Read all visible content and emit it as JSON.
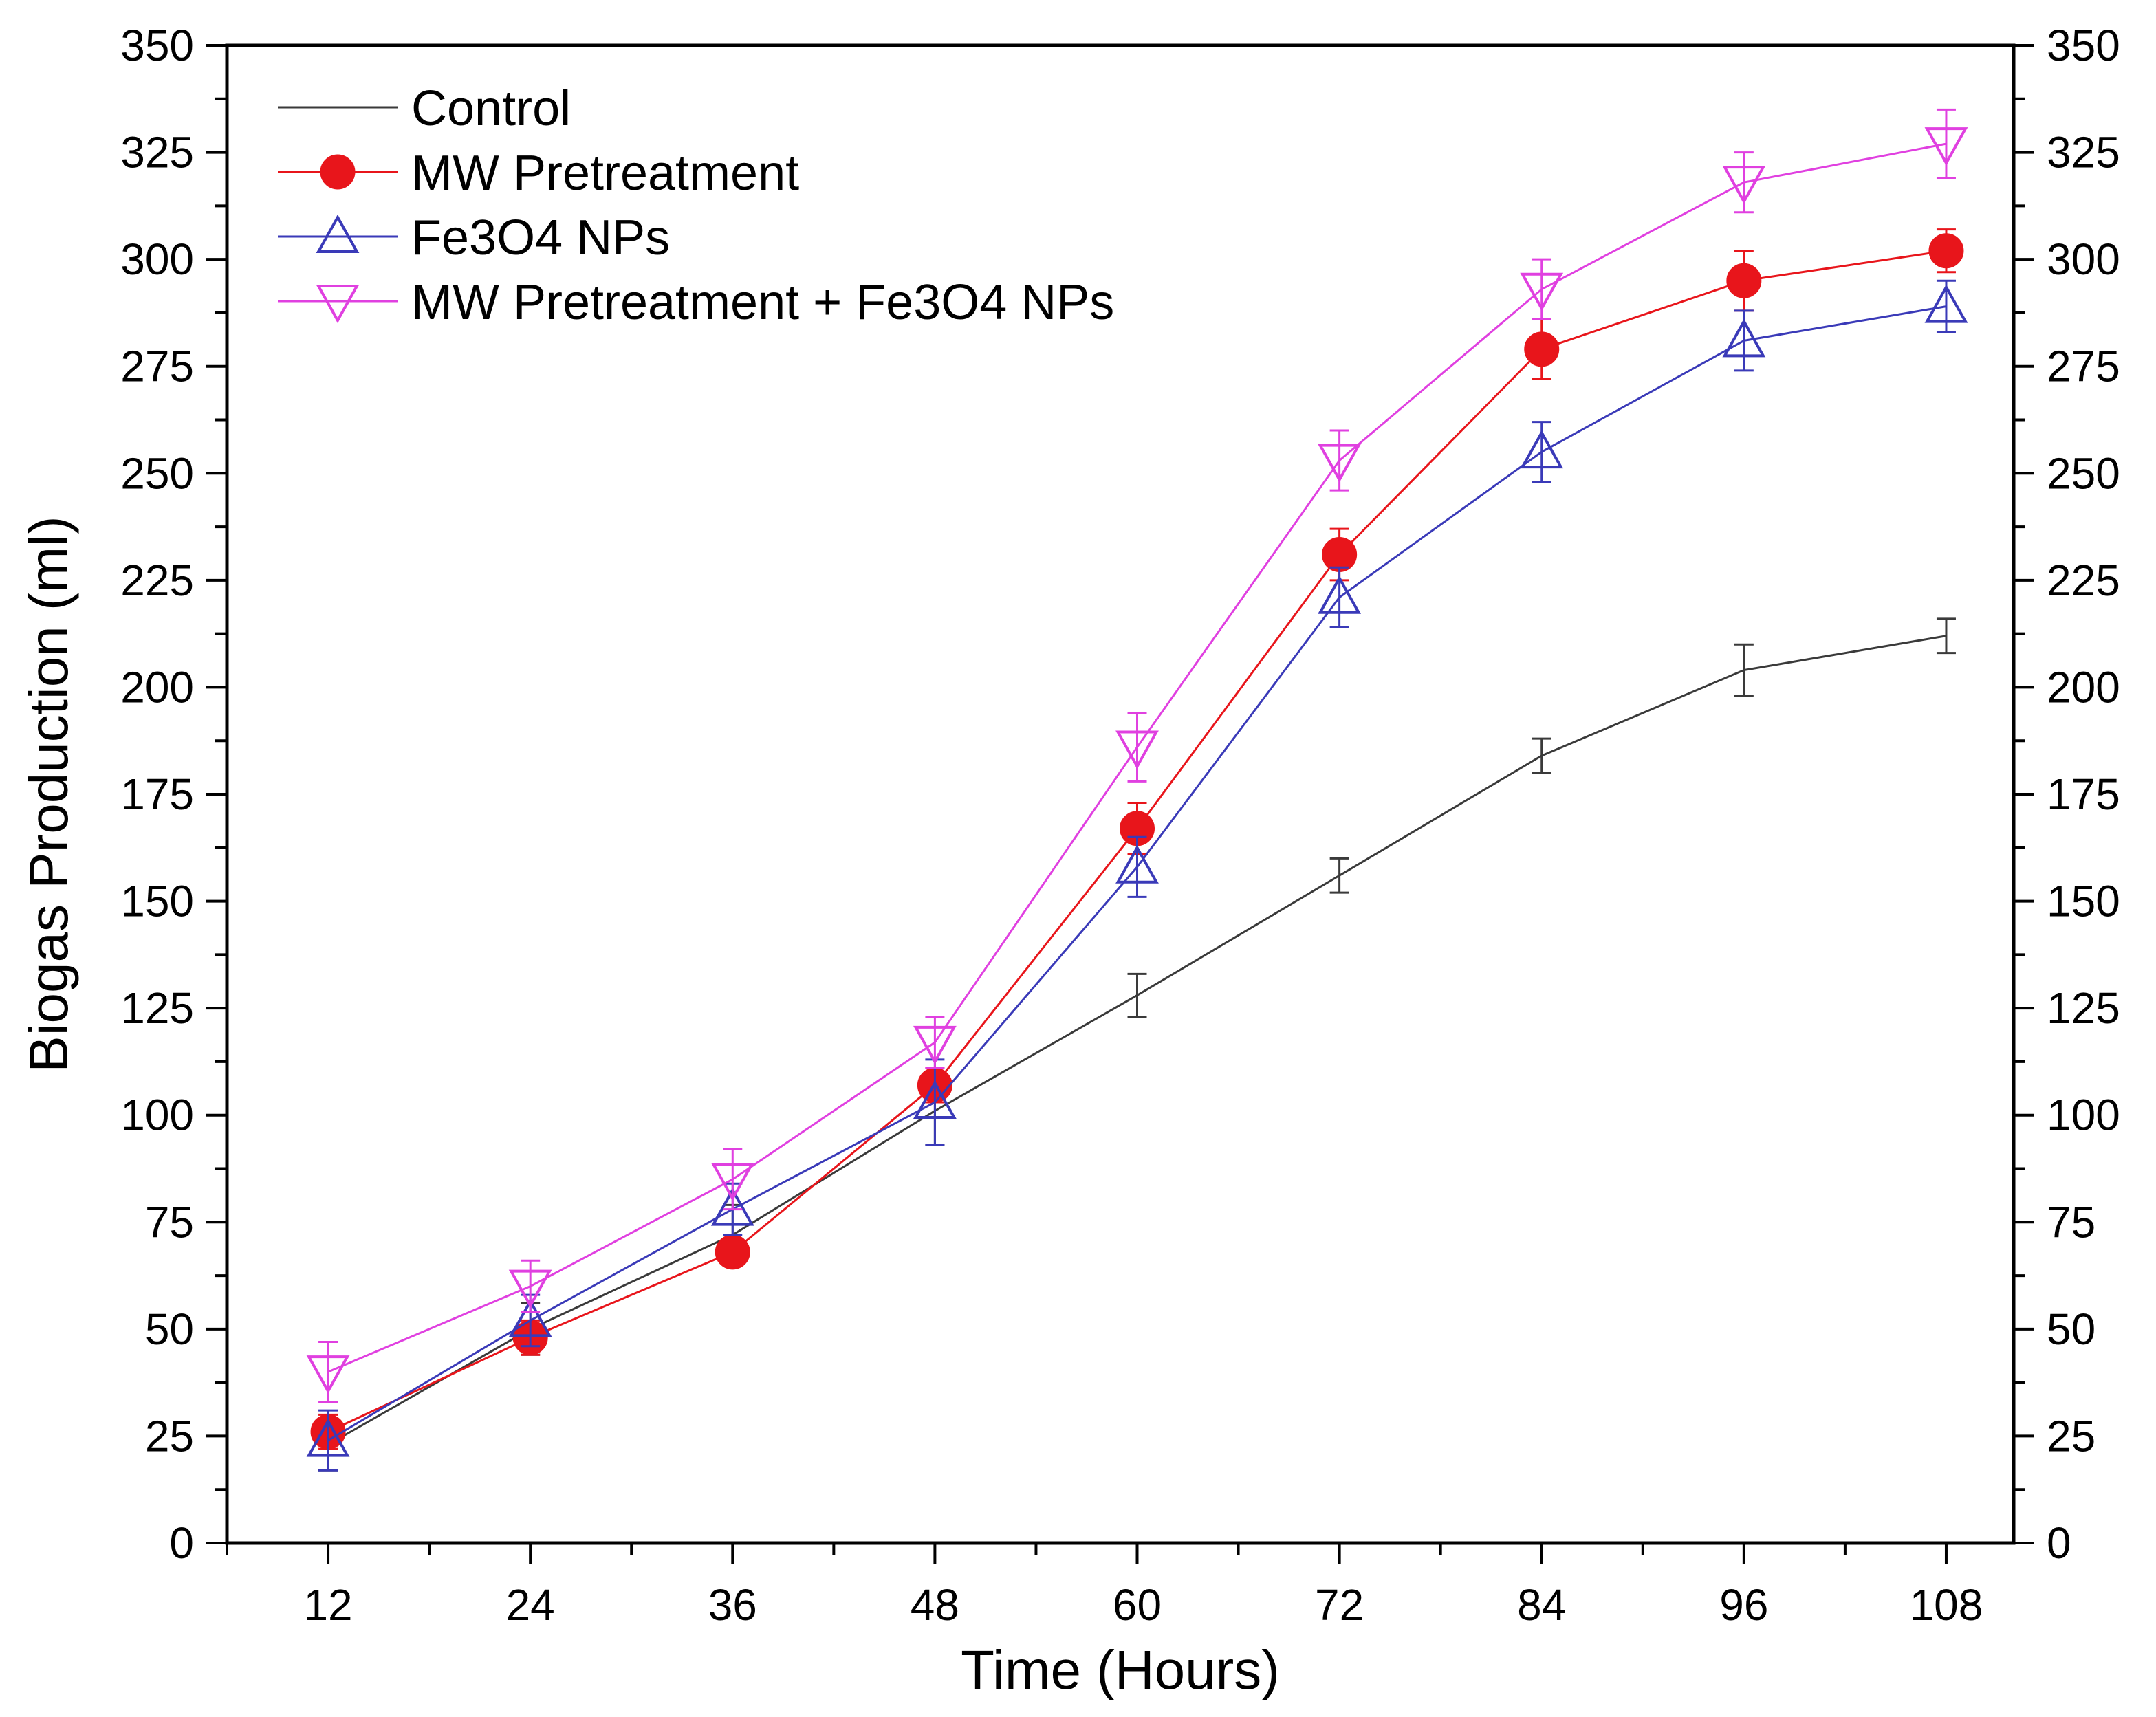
{
  "chart_data": {
    "type": "line",
    "xlabel": "Time (Hours)",
    "ylabel": "Biogas Production (ml)",
    "x": [
      12,
      24,
      36,
      48,
      60,
      72,
      84,
      96,
      108
    ],
    "xticks": [
      "12",
      "24",
      "36",
      "48",
      "60",
      "72",
      "84",
      "96",
      "108"
    ],
    "xlim": [
      6,
      112
    ],
    "ylim": [
      0,
      350
    ],
    "yticks": [
      "0",
      "25",
      "50",
      "75",
      "100",
      "125",
      "150",
      "175",
      "200",
      "225",
      "250",
      "275",
      "300",
      "325",
      "350"
    ],
    "right_axis": true,
    "grid": false,
    "legend_position": "top-left",
    "series": [
      {
        "name": "Control",
        "color": "#3a3a3a",
        "marker": "none",
        "values": [
          23,
          50,
          72,
          101,
          128,
          156,
          184,
          204,
          212
        ],
        "errors": [
          6,
          6,
          7,
          8,
          5,
          4,
          4,
          6,
          4
        ]
      },
      {
        "name": "MW Pretreatment",
        "color": "#e8151b",
        "marker": "filled-circle",
        "values": [
          26,
          48,
          68,
          107,
          167,
          231,
          279,
          295,
          302
        ],
        "errors": [
          4,
          4,
          3,
          4,
          6,
          6,
          7,
          7,
          5
        ]
      },
      {
        "name": "Fe3O4 NPs",
        "color": "#3a3ab8",
        "marker": "open-triangle-up",
        "values": [
          24,
          52,
          78,
          103,
          158,
          221,
          255,
          281,
          289
        ],
        "errors": [
          7,
          6,
          6,
          10,
          7,
          7,
          7,
          7,
          6
        ]
      },
      {
        "name": "MW Pretreatment + Fe3O4 NPs",
        "color": "#e040e0",
        "marker": "open-triangle-down",
        "values": [
          40,
          60,
          85,
          117,
          186,
          253,
          293,
          318,
          327
        ],
        "errors": [
          7,
          6,
          7,
          6,
          8,
          7,
          7,
          7,
          8
        ]
      }
    ]
  }
}
